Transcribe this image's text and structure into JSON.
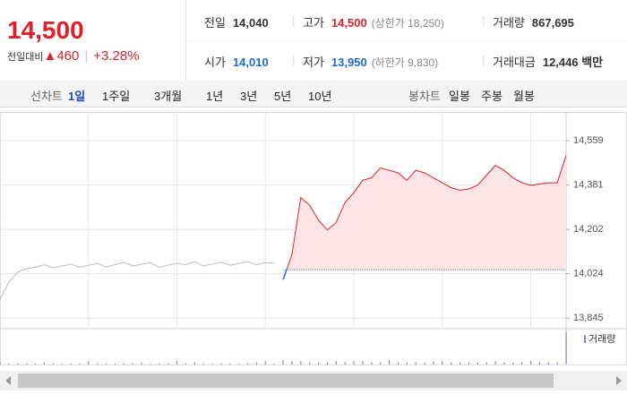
{
  "header": {
    "price": "14,500",
    "change_label": "전일대비",
    "change": "460",
    "change_pct": "+3.28%",
    "rows": [
      [
        {
          "label": "전일",
          "value": "14,040"
        },
        {
          "label": "고가",
          "value": "14,500",
          "note": "(상한가 18,250)"
        },
        {
          "label": "거래량",
          "value": "867,695"
        }
      ],
      [
        {
          "label": "시가",
          "value": "14,010"
        },
        {
          "label": "저가",
          "value": "13,950",
          "note": "(하한가 9,830)"
        },
        {
          "label": "거래대금",
          "value": "12,446 백만"
        }
      ]
    ]
  },
  "toolbar": {
    "line_chart": "선차트",
    "periods": [
      "1일",
      "1주일",
      "3개월",
      "1년",
      "3년",
      "5년",
      "10년"
    ],
    "candle_chart": "봉차트",
    "candle_periods": [
      "일봉",
      "주봉",
      "월봉"
    ]
  },
  "chart_data": {
    "type": "line",
    "legend": "거래량",
    "baseline": 14040,
    "ylim": [
      13810,
      14675
    ],
    "yticks": [
      {
        "value": 14559,
        "label": "14,559"
      },
      {
        "value": 14381,
        "label": "14,381"
      },
      {
        "value": 14202,
        "label": "14,202"
      },
      {
        "value": 14024,
        "label": "14,024"
      },
      {
        "value": 13845,
        "label": "13,845"
      }
    ],
    "xlim": [
      0,
      64
    ],
    "xticks": [
      10,
      20,
      30,
      40,
      50,
      60
    ],
    "grid": true,
    "series": [
      {
        "color": "#bbbbbb",
        "values": [
          13920,
          13990,
          14030,
          14045,
          14050,
          14060,
          14048,
          14055,
          14062,
          14050,
          14058,
          14065,
          14052,
          14060,
          14070,
          14055,
          14062,
          14068,
          14050,
          14058,
          14066,
          14060,
          14072,
          14055,
          14063,
          14070,
          14058,
          14065,
          14072,
          14060,
          14068,
          14065,
          null,
          null,
          null,
          null,
          null,
          null,
          null,
          null,
          null,
          null,
          null,
          null,
          null,
          null,
          null,
          null,
          null,
          null,
          null,
          null,
          null,
          null,
          null,
          null,
          null,
          null,
          null,
          null,
          null,
          null,
          null,
          null,
          null
        ]
      },
      {
        "color": "#e0202a",
        "values": [
          null,
          null,
          null,
          null,
          null,
          null,
          null,
          null,
          null,
          null,
          null,
          null,
          null,
          null,
          null,
          null,
          null,
          null,
          null,
          null,
          null,
          null,
          null,
          null,
          null,
          null,
          null,
          null,
          null,
          null,
          null,
          null,
          14000,
          14100,
          14330,
          14300,
          14240,
          14200,
          14230,
          14310,
          14350,
          14400,
          14410,
          14450,
          14440,
          14430,
          14400,
          14440,
          14430,
          14410,
          14390,
          14370,
          14360,
          14365,
          14380,
          14420,
          14460,
          14440,
          14410,
          14390,
          14380,
          14385,
          14390,
          14390,
          14500
        ]
      }
    ],
    "volume": {
      "color": "#8a80c4",
      "ylim": [
        0,
        32
      ],
      "values": [
        2,
        1,
        1,
        1,
        1,
        2,
        1,
        1,
        1,
        1,
        2,
        1,
        1,
        1,
        1,
        1,
        2,
        1,
        1,
        1,
        1,
        1,
        2,
        1,
        1,
        1,
        1,
        1,
        1,
        2,
        1,
        1,
        4,
        3,
        3,
        2,
        2,
        2,
        3,
        2,
        2,
        3,
        2,
        2,
        4,
        2,
        2,
        2,
        2,
        3,
        2,
        2,
        2,
        2,
        2,
        2,
        3,
        2,
        2,
        2,
        3,
        2,
        2,
        2,
        30
      ]
    }
  }
}
